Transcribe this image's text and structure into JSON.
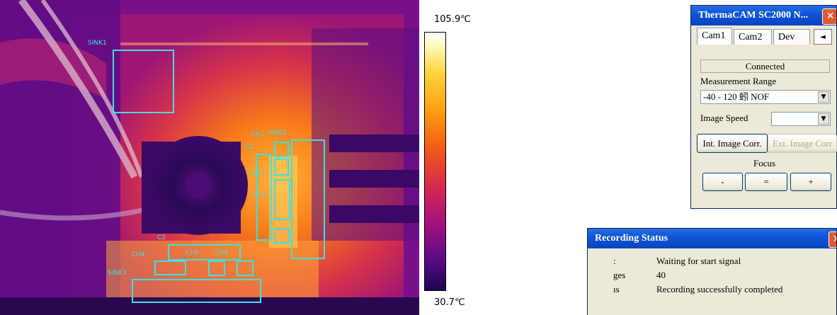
{
  "thermal_image": {
    "rois": [
      {
        "label": "SINK1"
      },
      {
        "label": "CH1"
      },
      {
        "label": "SINK2"
      },
      {
        "label": "C1"
      },
      {
        "label": "CH2"
      },
      {
        "label": "CH3"
      },
      {
        "label": "C2"
      },
      {
        "label": "CH4"
      },
      {
        "label": "CH5"
      },
      {
        "label": "CH6"
      },
      {
        "label": "SINK3"
      }
    ]
  },
  "scale": {
    "max": "105.9℃",
    "min": "30.7℃"
  },
  "camera_window": {
    "title": "ThermaCAM SC2000 N...",
    "close_glyph": "✕",
    "tabs": [
      "Cam1",
      "Cam2",
      "Dev"
    ],
    "tab_scroll_left": "◄",
    "status": "Connected",
    "measurement_range_label": "Measurement Range",
    "measurement_range_value": "-40 - 120 蚓 NOF",
    "image_speed_label": "Image Speed",
    "image_speed_value": "",
    "int_image_corr": "Int. Image Corr.",
    "ext_image_corr": "Ext. Image Corr",
    "focus_label": "Focus",
    "focus_minus": "-",
    "focus_equal": "=",
    "focus_plus": "+"
  },
  "recording_window": {
    "title": "Recording Status",
    "close_glyph": "✕",
    "rows": [
      {
        "key": ":",
        "value": "Waiting for start signal"
      },
      {
        "key": "ges",
        "value": "40"
      },
      {
        "key": "ıs",
        "value": "Recording successfully completed"
      }
    ]
  }
}
